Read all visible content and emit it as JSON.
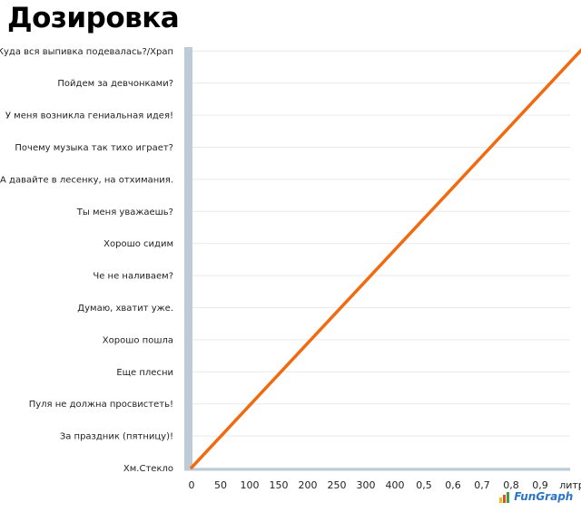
{
  "header": {
    "title": "Дозировка"
  },
  "brand": {
    "logo_text": "FunGraph",
    "logo_icon": "bar-chart-logo-icon"
  },
  "colors": {
    "line": "#f26a10",
    "axis_bar": "#bccbd6",
    "grid": "#e6e9ec"
  },
  "chart_data": {
    "type": "line",
    "title": "Дозировка",
    "x_tick_labels": [
      "0",
      "50",
      "100",
      "150",
      "200",
      "250",
      "300",
      "400",
      "0,5",
      "0,6",
      "0,7",
      "0,8",
      "0,9",
      "литр"
    ],
    "y_tick_labels": [
      "Хм.Стекло",
      "За праздник (пятницу)!",
      "Пуля не должна просвистеть!",
      "Еще плесни",
      "Хорошо пошла",
      "Думаю, хватит уже.",
      "Че не наливаем?",
      "Хорошо сидим",
      "Ты меня уважаешь?",
      "А давайте в лесенку, на отхимания.",
      "Почему музыка так тихо играет?",
      "У меня возникла гениальная идея!",
      "Пойдем за девчонками?",
      "Куда вся выпивка подевалась?/Храп"
    ],
    "series": [
      {
        "x_index": [
          0,
          13.5
        ],
        "y_index": [
          0,
          13.1
        ]
      }
    ],
    "grid": true
  }
}
